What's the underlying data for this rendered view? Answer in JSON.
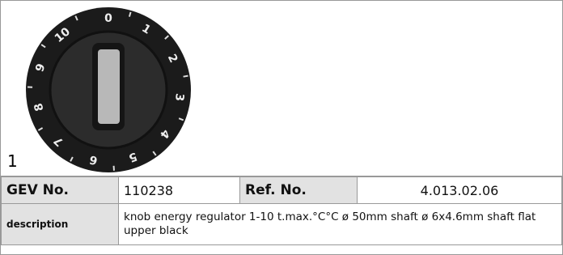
{
  "image": {
    "caption": "1",
    "dial": {
      "labels": [
        "0",
        "1",
        "2",
        "3",
        "4",
        "5",
        "6",
        "7",
        "8",
        "9",
        "10"
      ]
    }
  },
  "table": {
    "rows": [
      [
        "GEV No.",
        "110238",
        "Ref. No.",
        "4.013.02.06"
      ],
      [
        "description",
        "knob  energy regulator 1-10 t.max.°C°C ø 50mm shaft ø 6x4.6mm shaft flat upper black"
      ]
    ]
  }
}
